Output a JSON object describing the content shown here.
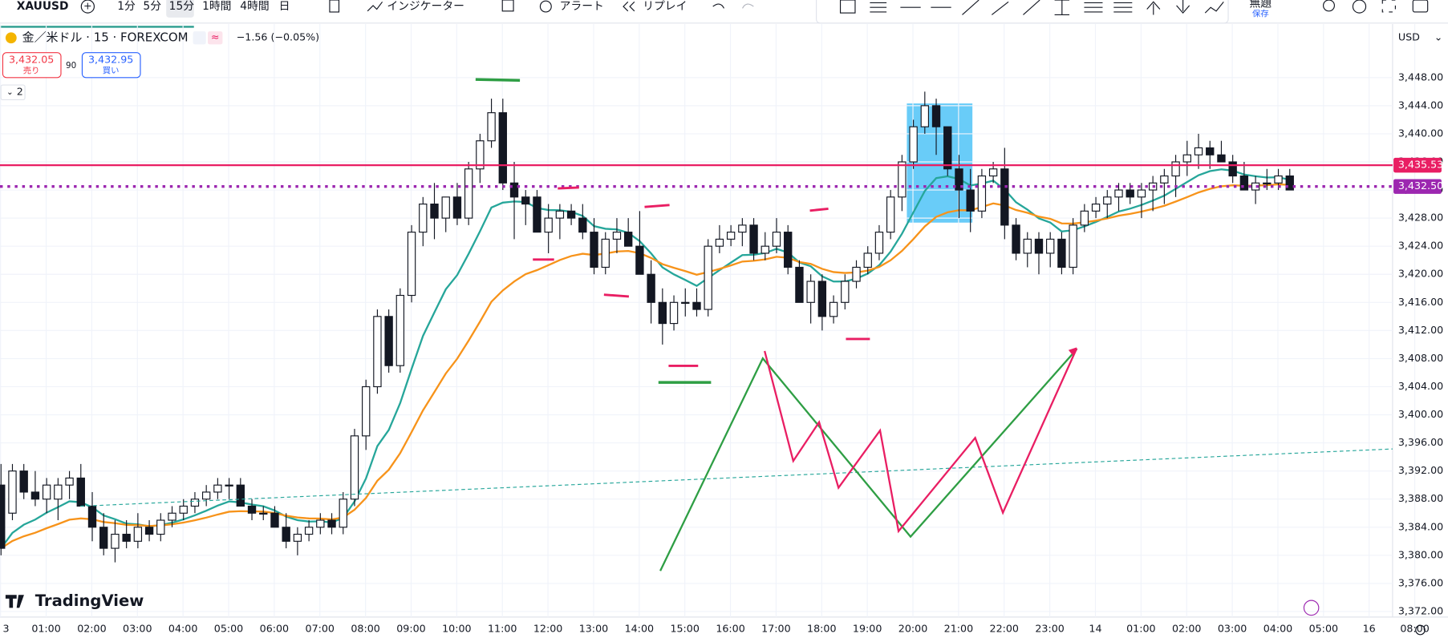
{
  "toolbar": {
    "symbol": "XAUUSD",
    "intervals": [
      "1分",
      "5分",
      "15分",
      "1時間",
      "4時間",
      "日"
    ],
    "indicators": "インジケーター",
    "alert": "アラート",
    "replay": "リプレイ",
    "layout_name": "無題",
    "save": "保存"
  },
  "legend": {
    "instrument": "金／米ドル · 15 · FOREXCOM",
    "change": "−1.56 (−0.05%)",
    "sell_price": "3,432.05",
    "sell": "売り",
    "spread": "90",
    "buy_price": "3,432.95",
    "buy": "買い",
    "indicator_count": "2"
  },
  "watermark": "TradingView",
  "chart_data": {
    "type": "candlestick",
    "currency": "USD",
    "ylim": [
      3370.3,
      3453.1
    ],
    "yticks": [
      {
        "value": 3372,
        "label": "3,372.00"
      },
      {
        "value": 3376,
        "label": "3,376.00"
      },
      {
        "value": 3380,
        "label": "3,380.00"
      },
      {
        "value": 3384,
        "label": "3,384.00"
      },
      {
        "value": 3388,
        "label": "3,388.00"
      },
      {
        "value": 3392,
        "label": "3,392.00"
      },
      {
        "value": 3396,
        "label": "3,396.00"
      },
      {
        "value": 3400,
        "label": "3,400.00"
      },
      {
        "value": 3404,
        "label": "3,404.00"
      },
      {
        "value": 3408,
        "label": "3,408.00"
      },
      {
        "value": 3412,
        "label": "3,412.00"
      },
      {
        "value": 3416,
        "label": "3,416.00"
      },
      {
        "value": 3420,
        "label": "3,420.00"
      },
      {
        "value": 3424,
        "label": "3,424.00"
      },
      {
        "value": 3428,
        "label": "3,428.00"
      },
      {
        "value": 3432,
        "label": "3,432.00"
      },
      {
        "value": 3436,
        "label": "3,436.00"
      },
      {
        "value": 3440,
        "label": "3,440.00"
      },
      {
        "value": 3444,
        "label": "3,444.00"
      },
      {
        "value": 3448,
        "label": "3,448.00"
      }
    ],
    "xticks": [
      "3",
      "01:00",
      "02:00",
      "03:00",
      "04:00",
      "05:00",
      "06:00",
      "07:00",
      "08:00",
      "09:00",
      "10:00",
      "11:00",
      "12:00",
      "13:00",
      "14:00",
      "15:00",
      "16:00",
      "17:00",
      "18:00",
      "19:00",
      "20:00",
      "21:00",
      "22:00",
      "23:00",
      "14",
      "01:00",
      "02:00",
      "03:00",
      "04:00",
      "05:00",
      "16",
      "08:00"
    ],
    "price_lines": [
      {
        "value": 3435.53,
        "label": "3,435.53",
        "color": "#e91e63",
        "style": "solid"
      },
      {
        "value": 3432.5,
        "label": "3,432.50",
        "color": "#9c27b0",
        "style": "dotted"
      }
    ],
    "candles": [
      [
        3390,
        3393,
        3380,
        3381
      ],
      [
        3386,
        3393,
        3385,
        3392
      ],
      [
        3392,
        3393,
        3388,
        3389
      ],
      [
        3389,
        3392,
        3387,
        3388
      ],
      [
        3388,
        3391,
        3386,
        3390
      ],
      [
        3388,
        3391,
        3385,
        3390
      ],
      [
        3390,
        3392,
        3388,
        3391
      ],
      [
        3391,
        3393,
        3387,
        3387
      ],
      [
        3387,
        3389,
        3382,
        3384
      ],
      [
        3384,
        3386,
        3380,
        3381
      ],
      [
        3381,
        3385,
        3379,
        3383
      ],
      [
        3383,
        3385,
        3381,
        3382
      ],
      [
        3382,
        3386,
        3381,
        3384
      ],
      [
        3384,
        3385,
        3382,
        3383
      ],
      [
        3383,
        3386,
        3382,
        3385
      ],
      [
        3385,
        3387,
        3384,
        3386
      ],
      [
        3386,
        3388,
        3385,
        3387
      ],
      [
        3387,
        3389,
        3386,
        3388
      ],
      [
        3388,
        3390,
        3387,
        3389
      ],
      [
        3389,
        3391,
        3388,
        3390
      ],
      [
        3390,
        3391,
        3388,
        3390
      ],
      [
        3390,
        3391,
        3387,
        3387
      ],
      [
        3387,
        3388,
        3385,
        3386
      ],
      [
        3386,
        3387,
        3385,
        3386
      ],
      [
        3386,
        3387,
        3384,
        3384
      ],
      [
        3384,
        3386,
        3381,
        3382
      ],
      [
        3382,
        3384,
        3380,
        3383
      ],
      [
        3383,
        3385,
        3382,
        3384
      ],
      [
        3384,
        3386,
        3383,
        3385
      ],
      [
        3385,
        3386,
        3383,
        3384
      ],
      [
        3384,
        3389,
        3383,
        3388
      ],
      [
        3388,
        3398,
        3387,
        3397
      ],
      [
        3397,
        3405,
        3395,
        3404
      ],
      [
        3404,
        3415,
        3403,
        3414
      ],
      [
        3414,
        3415,
        3406,
        3407
      ],
      [
        3407,
        3418,
        3406,
        3417
      ],
      [
        3417,
        3427,
        3416,
        3426
      ],
      [
        3426,
        3431,
        3424,
        3430
      ],
      [
        3430,
        3433,
        3425,
        3428
      ],
      [
        3428,
        3431,
        3426,
        3431
      ],
      [
        3431,
        3433,
        3427,
        3428
      ],
      [
        3428,
        3436,
        3427,
        3435
      ],
      [
        3435,
        3440,
        3433,
        3439
      ],
      [
        3439,
        3445,
        3438,
        3443
      ],
      [
        3443,
        3445,
        3432,
        3433
      ],
      [
        3433,
        3436,
        3425,
        3431
      ],
      [
        3431,
        3432,
        3427,
        3430
      ],
      [
        3431,
        3432,
        3426,
        3426
      ],
      [
        3426,
        3430,
        3423,
        3428
      ],
      [
        3428,
        3430,
        3425,
        3429
      ],
      [
        3429,
        3430,
        3427,
        3428
      ],
      [
        3428,
        3430,
        3425,
        3426
      ],
      [
        3426,
        3428,
        3420,
        3421
      ],
      [
        3421,
        3426,
        3420,
        3425
      ],
      [
        3425,
        3428,
        3423,
        3426
      ],
      [
        3426,
        3428,
        3424,
        3424
      ],
      [
        3424,
        3429,
        3420,
        3420
      ],
      [
        3420,
        3422,
        3413,
        3416
      ],
      [
        3416,
        3418,
        3410,
        3413
      ],
      [
        3413,
        3417,
        3412,
        3416
      ],
      [
        3416,
        3418,
        3414,
        3416
      ],
      [
        3416,
        3418,
        3414,
        3415
      ],
      [
        3415,
        3425,
        3414,
        3424
      ],
      [
        3424,
        3427,
        3423,
        3425
      ],
      [
        3425,
        3427,
        3424,
        3426
      ],
      [
        3426,
        3428,
        3424,
        3427
      ],
      [
        3427,
        3428,
        3422,
        3423
      ],
      [
        3423,
        3426,
        3422,
        3424
      ],
      [
        3424,
        3428,
        3423,
        3426
      ],
      [
        3426,
        3427,
        3420,
        3421
      ],
      [
        3421,
        3422,
        3416,
        3416
      ],
      [
        3416,
        3420,
        3413,
        3419
      ],
      [
        3419,
        3420,
        3412,
        3414
      ],
      [
        3414,
        3417,
        3413,
        3416
      ],
      [
        3416,
        3420,
        3415,
        3419
      ],
      [
        3419,
        3422,
        3418,
        3421
      ],
      [
        3421,
        3424,
        3420,
        3423
      ],
      [
        3423,
        3427,
        3422,
        3426
      ],
      [
        3426,
        3432,
        3425,
        3431
      ],
      [
        3431,
        3437,
        3429,
        3436
      ],
      [
        3436,
        3442,
        3435,
        3441
      ],
      [
        3441,
        3446,
        3440,
        3444
      ],
      [
        3444,
        3445,
        3437,
        3441
      ],
      [
        3441,
        3441,
        3434,
        3435
      ],
      [
        3435,
        3437,
        3428,
        3432
      ],
      [
        3432,
        3435,
        3426,
        3429
      ],
      [
        3429,
        3435,
        3428,
        3434
      ],
      [
        3434,
        3436,
        3433,
        3435
      ],
      [
        3435,
        3438,
        3425,
        3427
      ],
      [
        3427,
        3428,
        3422,
        3423
      ],
      [
        3423,
        3426,
        3421,
        3425
      ],
      [
        3425,
        3426,
        3420,
        3423
      ],
      [
        3423,
        3426,
        3421,
        3425
      ],
      [
        3425,
        3426,
        3420,
        3421
      ],
      [
        3421,
        3428,
        3420,
        3427
      ],
      [
        3427,
        3430,
        3426,
        3429
      ],
      [
        3429,
        3431,
        3428,
        3430
      ],
      [
        3430,
        3432,
        3428,
        3431
      ],
      [
        3431,
        3433,
        3429,
        3432
      ],
      [
        3432,
        3433,
        3430,
        3431
      ],
      [
        3431,
        3433,
        3428,
        3432
      ],
      [
        3432,
        3434,
        3429,
        3433
      ],
      [
        3433,
        3435,
        3430,
        3434
      ],
      [
        3434,
        3437,
        3431,
        3436
      ],
      [
        3436,
        3439,
        3434,
        3437
      ],
      [
        3437,
        3440,
        3435,
        3438
      ],
      [
        3438,
        3439,
        3435,
        3437
      ],
      [
        3437,
        3439,
        3436,
        3436
      ],
      [
        3436,
        3437,
        3433,
        3434
      ],
      [
        3434,
        3436,
        3432,
        3432
      ],
      [
        3432,
        3434,
        3430,
        3433
      ],
      [
        3433,
        3435,
        3432,
        3433
      ],
      [
        3433,
        3435,
        3432,
        3434
      ],
      [
        3434,
        3435,
        3432,
        3432
      ]
    ]
  }
}
